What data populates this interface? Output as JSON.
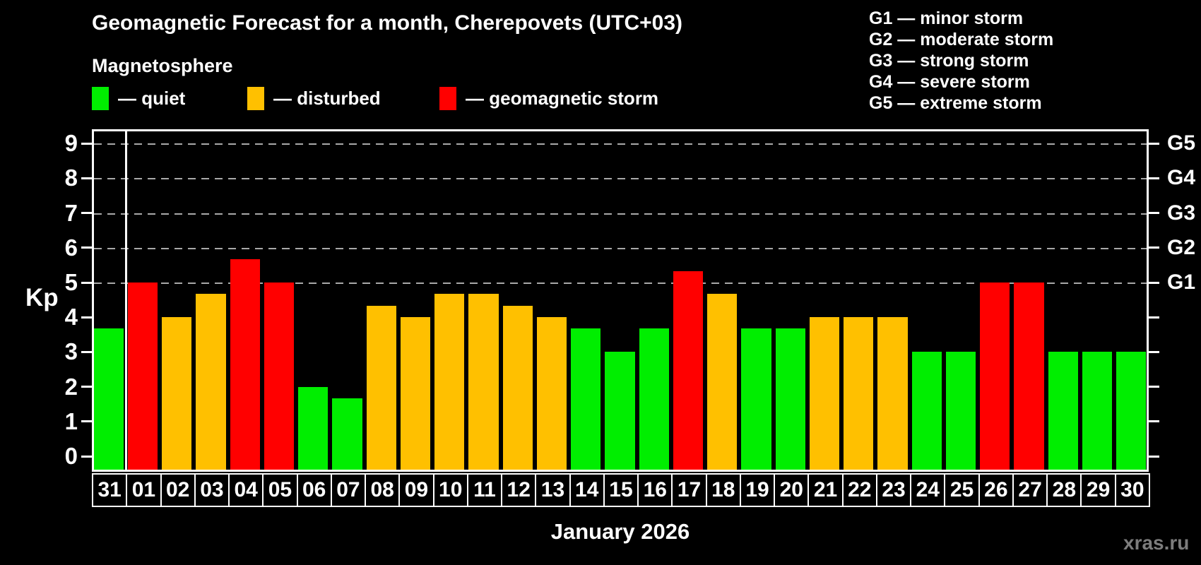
{
  "header": {
    "title": "Geomagnetic Forecast for a month, Cherepovets (UTC+03)",
    "subtitle": "Magnetosphere",
    "watermark": "xras.ru"
  },
  "colors": {
    "quiet": "#00ee00",
    "disturbed": "#ffc000",
    "storm": "#ff0000",
    "background": "#000000",
    "grid": "#a9a9a9",
    "axis": "#ffffff",
    "watermark": "#7d7d7d"
  },
  "legend": {
    "items": [
      {
        "label": "— quiet",
        "color_key": "quiet"
      },
      {
        "label": "— disturbed",
        "color_key": "disturbed"
      },
      {
        "label": "— geomagnetic storm",
        "color_key": "storm"
      }
    ]
  },
  "storm_scale_legend": {
    "lines": [
      "G1 — minor storm",
      "G2 — moderate storm",
      "G3 — strong storm",
      "G4 — severe storm",
      "G5 — extreme storm"
    ]
  },
  "chart_data": {
    "type": "bar",
    "title": "Geomagnetic Forecast for a month, Cherepovets (UTC+03)",
    "xlabel": "January 2026",
    "ylabel": "Kp",
    "ylim": [
      -0.45,
      9.41
    ],
    "yticks": [
      0,
      1,
      2,
      3,
      4,
      5,
      6,
      7,
      8,
      9
    ],
    "gridlines_at_kp": [
      5,
      6,
      7,
      8,
      9
    ],
    "grid": "dashed horizontal at Kp 5-9 only",
    "legend_position": "top-left",
    "right_axis": [
      {
        "label": "G1",
        "kp": 5
      },
      {
        "label": "G2",
        "kp": 6
      },
      {
        "label": "G3",
        "kp": 7
      },
      {
        "label": "G4",
        "kp": 8
      },
      {
        "label": "G5",
        "kp": 9
      }
    ],
    "separator_after_index": 0,
    "categories": [
      "31",
      "01",
      "02",
      "03",
      "04",
      "05",
      "06",
      "07",
      "08",
      "09",
      "10",
      "11",
      "12",
      "13",
      "14",
      "15",
      "16",
      "17",
      "18",
      "19",
      "20",
      "21",
      "22",
      "23",
      "24",
      "25",
      "26",
      "27",
      "28",
      "29",
      "30"
    ],
    "values": [
      3.67,
      5.0,
      4.0,
      4.67,
      5.67,
      5.0,
      2.0,
      1.67,
      4.33,
      4.0,
      4.67,
      4.67,
      4.33,
      4.0,
      3.67,
      3.0,
      3.67,
      5.33,
      4.67,
      3.67,
      3.67,
      4.0,
      4.0,
      4.0,
      3.0,
      3.0,
      5.0,
      5.0,
      3.0,
      3.0,
      3.0
    ],
    "statuses": [
      "quiet",
      "storm",
      "disturbed",
      "disturbed",
      "storm",
      "storm",
      "quiet",
      "quiet",
      "disturbed",
      "disturbed",
      "disturbed",
      "disturbed",
      "disturbed",
      "disturbed",
      "quiet",
      "quiet",
      "quiet",
      "storm",
      "disturbed",
      "quiet",
      "quiet",
      "disturbed",
      "disturbed",
      "disturbed",
      "quiet",
      "quiet",
      "storm",
      "storm",
      "quiet",
      "quiet",
      "quiet"
    ]
  }
}
